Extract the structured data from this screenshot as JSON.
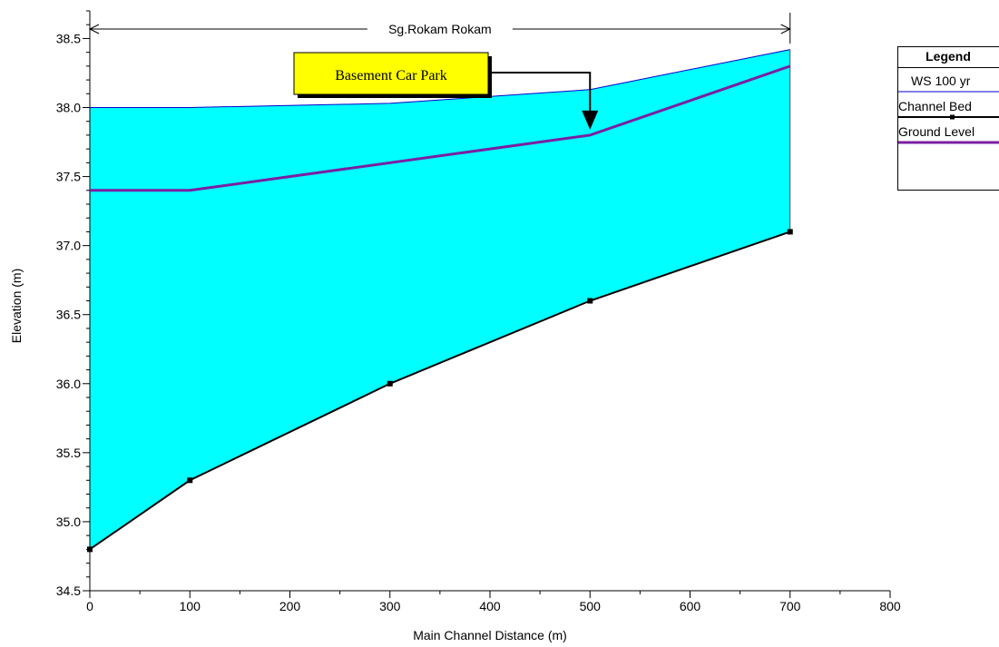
{
  "chart_data": {
    "type": "area",
    "title": "Sg.Rokam Rokam",
    "xlabel": "Main Channel Distance (m)",
    "ylabel": "Elevation (m)",
    "xlim": [
      0,
      800
    ],
    "ylim": [
      34.5,
      38.7
    ],
    "x_ticks": [
      0,
      100,
      200,
      300,
      400,
      500,
      600,
      700,
      800
    ],
    "x_tick_labels": [
      "0",
      "100",
      "200",
      "300",
      "400",
      "500",
      "600",
      "700",
      "800"
    ],
    "y_ticks": [
      34.5,
      35.0,
      35.5,
      36.0,
      36.5,
      37.0,
      37.5,
      38.0,
      38.5
    ],
    "y_tick_labels": [
      "34.5",
      "35.0",
      "35.5",
      "36.0",
      "36.5",
      "37.0",
      "37.5",
      "38.0",
      "38.5"
    ],
    "grid": false,
    "legend_position": "right",
    "series": [
      {
        "name": "WS  100 yr",
        "color": "#0000cc",
        "fill": "#00ffff",
        "x": [
          0,
          100,
          300,
          500,
          700
        ],
        "y": [
          38.0,
          38.0,
          38.03,
          38.13,
          38.42
        ]
      },
      {
        "name": "Channel Bed",
        "color": "#000000",
        "markers": true,
        "x": [
          0,
          100,
          300,
          500,
          700
        ],
        "y": [
          34.8,
          35.3,
          36.0,
          36.6,
          37.1
        ]
      },
      {
        "name": "Ground Level",
        "color": "#7a1fa2",
        "x": [
          0,
          100,
          500,
          700
        ],
        "y": [
          37.4,
          37.4,
          37.8,
          38.3
        ]
      }
    ],
    "reach_span": [
      0,
      700
    ],
    "annotation": {
      "text": "Basement Car Park",
      "bg": "#ffff00",
      "arrow_target": [
        500,
        37.82
      ]
    }
  },
  "legend": {
    "title": "Legend"
  }
}
